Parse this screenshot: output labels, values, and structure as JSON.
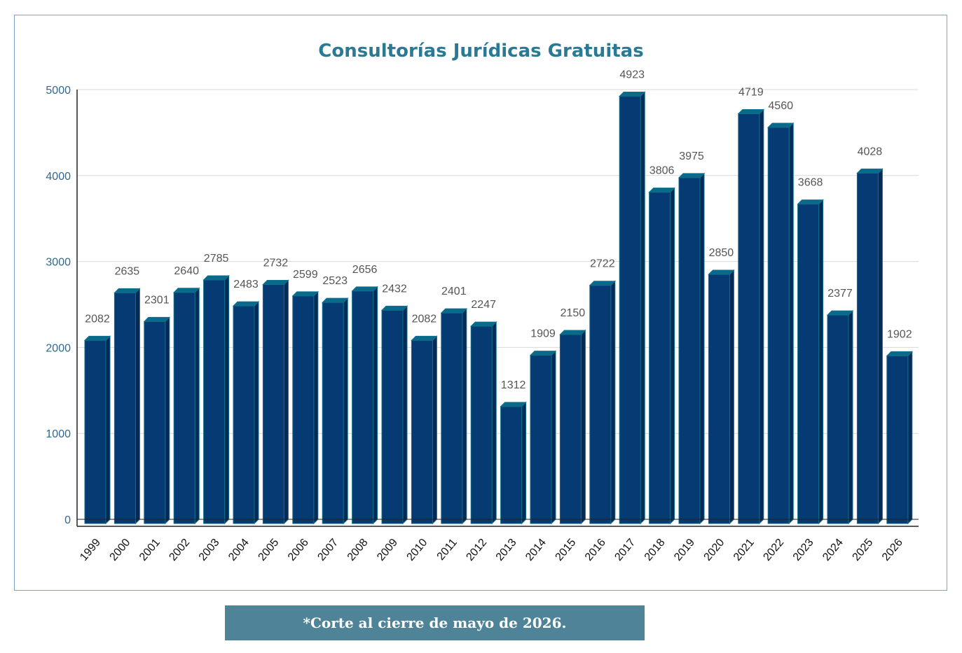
{
  "chart_data": {
    "type": "bar",
    "title": "Consultorías Jurídicas Gratuitas",
    "categories": [
      "1999",
      "2000",
      "2001",
      "2002",
      "2003",
      "2004",
      "2005",
      "2006",
      "2007",
      "2008",
      "2009",
      "2010",
      "2011",
      "2012",
      "2013",
      "2014",
      "2015",
      "2016",
      "2017",
      "2018",
      "2019",
      "2020",
      "2021",
      "2022",
      "2023",
      "2024",
      "2025",
      "2026"
    ],
    "values": [
      2082,
      2635,
      2301,
      2640,
      2785,
      2483,
      2732,
      2599,
      2523,
      2656,
      2432,
      2082,
      2401,
      2247,
      1312,
      1909,
      2150,
      2722,
      4923,
      3806,
      3975,
      2850,
      4719,
      4560,
      3668,
      2377,
      4028,
      1902
    ],
    "yticks": [
      "0",
      "1000",
      "2000",
      "3000",
      "4000",
      "5000"
    ],
    "ylim": [
      0,
      5000
    ],
    "grid": true,
    "colors": {
      "bar_front": "#063a72",
      "bar_top": "#0a6a8a",
      "bar_side": "#042a55",
      "title": "#2a7a95",
      "axis_ticks": "#2c6a8f",
      "value_labels": "#555555"
    }
  },
  "footnote": "*Corte al cierre de mayo de 2026."
}
